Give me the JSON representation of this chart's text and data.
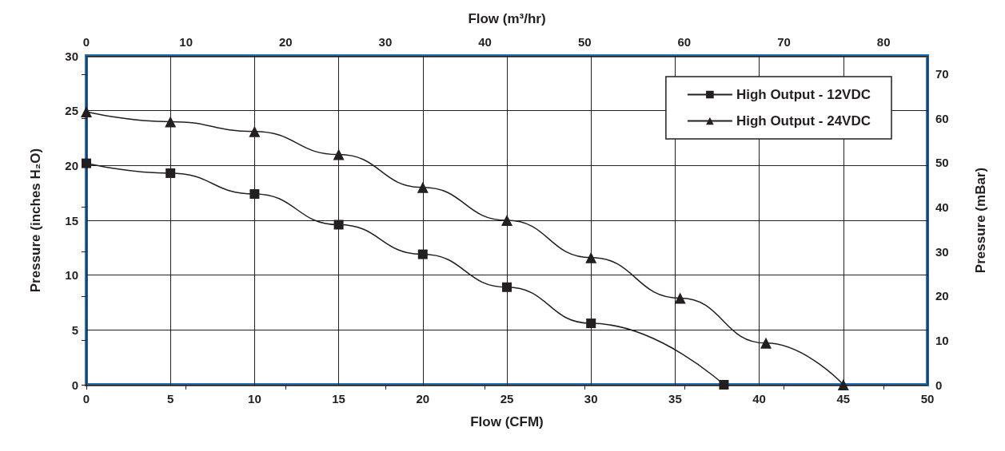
{
  "chart_data": {
    "type": "line",
    "xlabel": "Flow (CFM)",
    "ylabel": "Pressure (inches H₂O)",
    "y2label": "Pressure (mBar)",
    "x2label": "Flow (m³/hr)",
    "xlim": [
      0,
      50
    ],
    "xticks": [
      0,
      5,
      10,
      15,
      20,
      25,
      30,
      35,
      40,
      45,
      50
    ],
    "ylim": [
      0,
      30
    ],
    "yticks": [
      0,
      5,
      10,
      15,
      20,
      25,
      30
    ],
    "y2lim": [
      0,
      74.1
    ],
    "y2ticks": [
      0,
      10,
      20,
      30,
      40,
      50,
      60,
      70
    ],
    "x2lim": [
      0,
      84.4
    ],
    "x2ticks": [
      0,
      10,
      20,
      30,
      40,
      50,
      60,
      70,
      80
    ],
    "grid": true,
    "legend": "top right",
    "line_style": "solid",
    "series": [
      {
        "name": "High Output - 12VDC",
        "color": "#231f20",
        "marker": "square",
        "x": [
          0,
          5,
          10,
          15,
          20,
          25,
          30,
          37.9
        ],
        "values": [
          20.2,
          19.3,
          17.4,
          14.6,
          11.9,
          8.9,
          5.6,
          0
        ]
      },
      {
        "name": "High Output - 24VDC",
        "color": "#231f20",
        "marker": "triangle",
        "x": [
          0,
          5,
          10,
          15,
          20,
          25,
          30,
          35.3,
          40.4,
          45
        ],
        "values": [
          24.9,
          24.0,
          23.1,
          21.0,
          18.0,
          15.0,
          11.6,
          7.9,
          3.8,
          0
        ]
      }
    ]
  }
}
